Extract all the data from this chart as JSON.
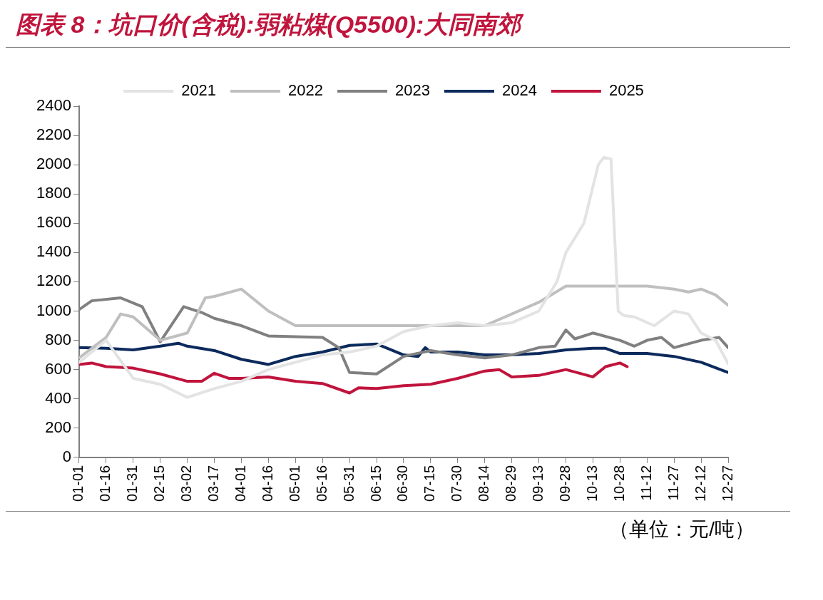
{
  "chart_data": {
    "type": "line",
    "title": "图表 8：坑口价(含税):弱粘煤(Q5500):大同南郊",
    "annotations": [
      "（单位：元/吨）"
    ],
    "xlim": [
      "--01-01",
      "--12-27"
    ],
    "xticks": [
      {
        "value": "--01-01",
        "label": "01-01"
      },
      {
        "value": "--01-16",
        "label": "01-16"
      },
      {
        "value": "--01-31",
        "label": "01-31"
      },
      {
        "value": "--02-15",
        "label": "02-15"
      },
      {
        "value": "--03-02",
        "label": "03-02"
      },
      {
        "value": "--03-17",
        "label": "03-17"
      },
      {
        "value": "--04-01",
        "label": "04-01"
      },
      {
        "value": "--04-16",
        "label": "04-16"
      },
      {
        "value": "--05-01",
        "label": "05-01"
      },
      {
        "value": "--05-16",
        "label": "05-16"
      },
      {
        "value": "--05-31",
        "label": "05-31"
      },
      {
        "value": "--06-15",
        "label": "06-15"
      },
      {
        "value": "--06-30",
        "label": "06-30"
      },
      {
        "value": "--07-15",
        "label": "07-15"
      },
      {
        "value": "--07-30",
        "label": "07-30"
      },
      {
        "value": "--08-14",
        "label": "08-14"
      },
      {
        "value": "--08-29",
        "label": "08-29"
      },
      {
        "value": "--09-13",
        "label": "09-13"
      },
      {
        "value": "--09-28",
        "label": "09-28"
      },
      {
        "value": "--10-13",
        "label": "10-13"
      },
      {
        "value": "--10-28",
        "label": "10-28"
      },
      {
        "value": "--11-12",
        "label": "11-12"
      },
      {
        "value": "--11-27",
        "label": "11-27"
      },
      {
        "value": "--12-12",
        "label": "12-12"
      },
      {
        "value": "--12-27",
        "label": "12-27"
      }
    ],
    "ylim": [
      0,
      2400
    ],
    "yticks": [
      0,
      200,
      400,
      600,
      800,
      1000,
      1200,
      1400,
      1600,
      1800,
      2000,
      2200,
      2400
    ],
    "grid": false,
    "legend": "top",
    "line_style": "solid",
    "marker": "none",
    "series": [
      {
        "name": "2021",
        "color": "#e3e3e3",
        "x": [
          "--01-01",
          "--01-16",
          "--01-31",
          "--02-15",
          "--03-02",
          "--03-17",
          "--04-01",
          "--04-16",
          "--05-01",
          "--05-16",
          "--05-31",
          "--06-15",
          "--06-30",
          "--07-15",
          "--07-30",
          "--08-14",
          "--08-29",
          "--09-13",
          "--09-23",
          "--09-28",
          "--10-08",
          "--10-16",
          "--10-19",
          "--10-23",
          "--10-27",
          "--10-30",
          "--11-05",
          "--11-16",
          "--11-27",
          "--12-05",
          "--12-12",
          "--12-20",
          "--12-27"
        ],
        "values": [
          650,
          800,
          540,
          500,
          410,
          470,
          520,
          600,
          650,
          700,
          720,
          760,
          860,
          900,
          920,
          900,
          920,
          1000,
          1200,
          1400,
          1600,
          2000,
          2050,
          2040,
          1000,
          970,
          960,
          900,
          1000,
          980,
          850,
          800,
          640
        ]
      },
      {
        "name": "2022",
        "color": "#bfbfbf",
        "x": [
          "--01-01",
          "--01-16",
          "--01-24",
          "--01-31",
          "--02-15",
          "--03-02",
          "--03-12",
          "--03-17",
          "--04-01",
          "--04-16",
          "--05-01",
          "--05-16",
          "--05-31",
          "--06-15",
          "--06-30",
          "--07-15",
          "--07-30",
          "--08-14",
          "--08-29",
          "--09-13",
          "--09-28",
          "--10-13",
          "--10-28",
          "--11-12",
          "--11-27",
          "--12-05",
          "--12-12",
          "--12-20",
          "--12-27"
        ],
        "values": [
          680,
          820,
          980,
          960,
          800,
          850,
          1090,
          1100,
          1150,
          1000,
          900,
          900,
          900,
          900,
          900,
          900,
          900,
          900,
          980,
          1060,
          1170,
          1170,
          1170,
          1170,
          1150,
          1130,
          1150,
          1110,
          1040
        ]
      },
      {
        "name": "2023",
        "color": "#808080",
        "x": [
          "--01-01",
          "--01-08",
          "--01-24",
          "--02-05",
          "--02-15",
          "--02-28",
          "--03-10",
          "--03-17",
          "--04-01",
          "--04-16",
          "--05-01",
          "--05-16",
          "--05-25",
          "--05-31",
          "--06-15",
          "--06-30",
          "--07-15",
          "--07-30",
          "--08-14",
          "--08-29",
          "--09-13",
          "--09-22",
          "--09-28",
          "--10-03",
          "--10-13",
          "--10-28",
          "--11-05",
          "--11-12",
          "--11-20",
          "--11-27",
          "--12-12",
          "--12-22",
          "--12-27"
        ],
        "values": [
          1010,
          1070,
          1090,
          1030,
          790,
          1030,
          990,
          950,
          900,
          830,
          825,
          820,
          750,
          580,
          570,
          690,
          730,
          700,
          680,
          700,
          750,
          760,
          870,
          810,
          850,
          800,
          760,
          800,
          820,
          750,
          800,
          820,
          750
        ]
      },
      {
        "name": "2024",
        "color": "#0c2a5c",
        "x": [
          "--01-01",
          "--01-16",
          "--01-31",
          "--02-15",
          "--02-25",
          "--03-02",
          "--03-17",
          "--04-01",
          "--04-16",
          "--05-01",
          "--05-16",
          "--05-31",
          "--06-15",
          "--06-30",
          "--07-08",
          "--07-12",
          "--07-15",
          "--07-30",
          "--08-14",
          "--08-29",
          "--09-13",
          "--09-28",
          "--10-13",
          "--10-20",
          "--10-28",
          "--11-12",
          "--11-27",
          "--12-12",
          "--12-27"
        ],
        "values": [
          750,
          745,
          735,
          760,
          780,
          760,
          730,
          670,
          635,
          690,
          720,
          765,
          775,
          700,
          690,
          750,
          720,
          720,
          700,
          700,
          710,
          735,
          745,
          745,
          710,
          710,
          690,
          650,
          580
        ]
      },
      {
        "name": "2025",
        "color": "#c0143c",
        "x": [
          "--01-01",
          "--01-08",
          "--01-16",
          "--01-31",
          "--02-15",
          "--03-02",
          "--03-10",
          "--03-17",
          "--03-25",
          "--04-01",
          "--04-16",
          "--05-01",
          "--05-16",
          "--05-31",
          "--06-05",
          "--06-15",
          "--06-30",
          "--07-15",
          "--07-30",
          "--08-14",
          "--08-22",
          "--08-29",
          "--09-13",
          "--09-28",
          "--10-13",
          "--10-20",
          "--10-28",
          "--11-01"
        ],
        "values": [
          635,
          645,
          620,
          610,
          570,
          520,
          520,
          575,
          540,
          540,
          550,
          520,
          505,
          440,
          475,
          470,
          490,
          500,
          540,
          590,
          600,
          550,
          560,
          600,
          550,
          620,
          645,
          620
        ]
      }
    ]
  }
}
